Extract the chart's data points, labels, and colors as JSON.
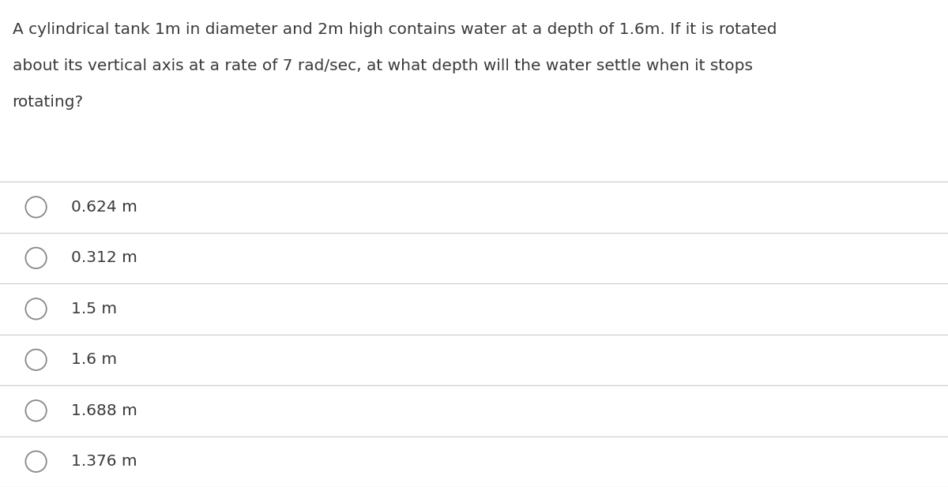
{
  "question_lines": [
    "A cylindrical tank 1m in diameter and 2m high contains water at a depth of 1.6m. If it is rotated",
    "about its vertical axis at a rate of 7 rad/sec, at what depth will the water settle when it stops",
    "rotating?"
  ],
  "options": [
    "0.624 m",
    "0.312 m",
    "1.5 m",
    "1.6 m",
    "1.688 m",
    "1.376 m"
  ],
  "background_color": "#ffffff",
  "text_color": "#3a3a3a",
  "line_color": "#d0d0d0",
  "question_fontsize": 14.5,
  "option_fontsize": 14.5,
  "circle_color": "#888888"
}
